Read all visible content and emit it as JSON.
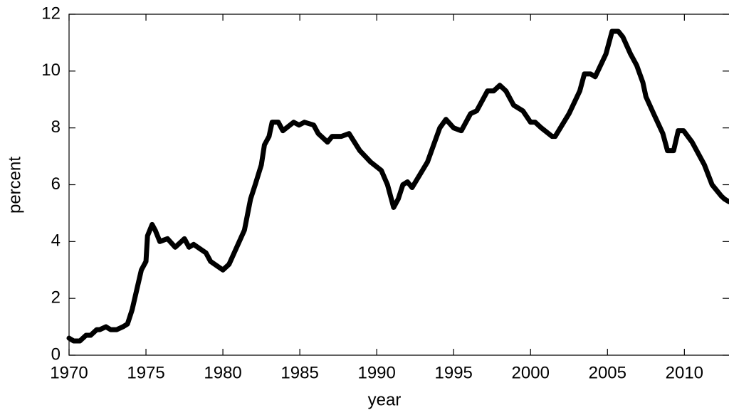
{
  "chart_data": {
    "type": "line",
    "x_label": "year",
    "y_label": "percent",
    "x": [
      1970.0,
      1970.3,
      1970.7,
      1971.1,
      1971.4,
      1971.8,
      1972.0,
      1972.4,
      1972.7,
      1973.1,
      1973.5,
      1973.8,
      1974.1,
      1974.4,
      1974.7,
      1975.0,
      1975.1,
      1975.4,
      1975.6,
      1975.9,
      1976.4,
      1976.9,
      1977.5,
      1977.8,
      1978.1,
      1978.9,
      1979.2,
      1980.0,
      1980.4,
      1980.9,
      1981.4,
      1981.8,
      1982.1,
      1982.5,
      1982.7,
      1983.0,
      1983.2,
      1983.6,
      1983.9,
      1984.6,
      1984.95,
      1985.3,
      1985.9,
      1986.2,
      1986.8,
      1987.1,
      1987.7,
      1988.2,
      1988.9,
      1989.6,
      1990.3,
      1990.7,
      1991.1,
      1991.4,
      1991.7,
      1992.0,
      1992.3,
      1993.3,
      1993.7,
      1994.1,
      1994.5,
      1995.0,
      1995.5,
      1996.1,
      1996.5,
      1997.2,
      1997.6,
      1998.0,
      1998.4,
      1998.9,
      1999.5,
      2000.0,
      2000.3,
      2000.7,
      2001.4,
      2001.6,
      2002.5,
      2003.2,
      2003.5,
      2003.9,
      2004.2,
      2004.9,
      2005.3,
      2005.7,
      2006.0,
      2006.5,
      2006.9,
      2007.3,
      2007.5,
      2008.0,
      2008.6,
      2008.9,
      2009.3,
      2009.6,
      2009.95,
      2010.5,
      2011.1,
      2011.3,
      2011.8,
      2012.4,
      2012.6,
      2012.9
    ],
    "series": [
      {
        "color": "#000000",
        "values": [
          0.6,
          0.5,
          0.5,
          0.7,
          0.7,
          0.9,
          0.9,
          1.0,
          0.9,
          0.9,
          1.0,
          1.1,
          1.6,
          2.3,
          3.0,
          3.3,
          4.2,
          4.6,
          4.4,
          4.0,
          4.1,
          3.8,
          4.1,
          3.8,
          3.9,
          3.6,
          3.3,
          3.0,
          3.2,
          3.8,
          4.4,
          5.5,
          6.0,
          6.7,
          7.4,
          7.7,
          8.2,
          8.2,
          7.9,
          8.2,
          8.1,
          8.2,
          8.1,
          7.8,
          7.5,
          7.7,
          7.7,
          7.8,
          7.2,
          6.8,
          6.5,
          6.0,
          5.2,
          5.5,
          6.0,
          6.1,
          5.9,
          6.8,
          7.4,
          8.0,
          8.3,
          8.0,
          7.9,
          8.5,
          8.6,
          9.3,
          9.3,
          9.5,
          9.3,
          8.8,
          8.6,
          8.2,
          8.2,
          8.0,
          7.7,
          7.7,
          8.5,
          9.3,
          9.9,
          9.9,
          9.8,
          10.6,
          11.4,
          11.4,
          11.2,
          10.6,
          10.2,
          9.6,
          9.1,
          8.5,
          7.8,
          7.2,
          7.2,
          7.9,
          7.9,
          7.5,
          6.9,
          6.7,
          6.0,
          5.6,
          5.5,
          5.4
        ]
      }
    ],
    "xlim": [
      1970,
      2012.9
    ],
    "ylim": [
      0,
      12
    ],
    "xticks": [
      1970,
      1975,
      1980,
      1985,
      1990,
      1995,
      2000,
      2005,
      2010
    ],
    "yticks": [
      0,
      2,
      4,
      6,
      8,
      10,
      12
    ]
  }
}
